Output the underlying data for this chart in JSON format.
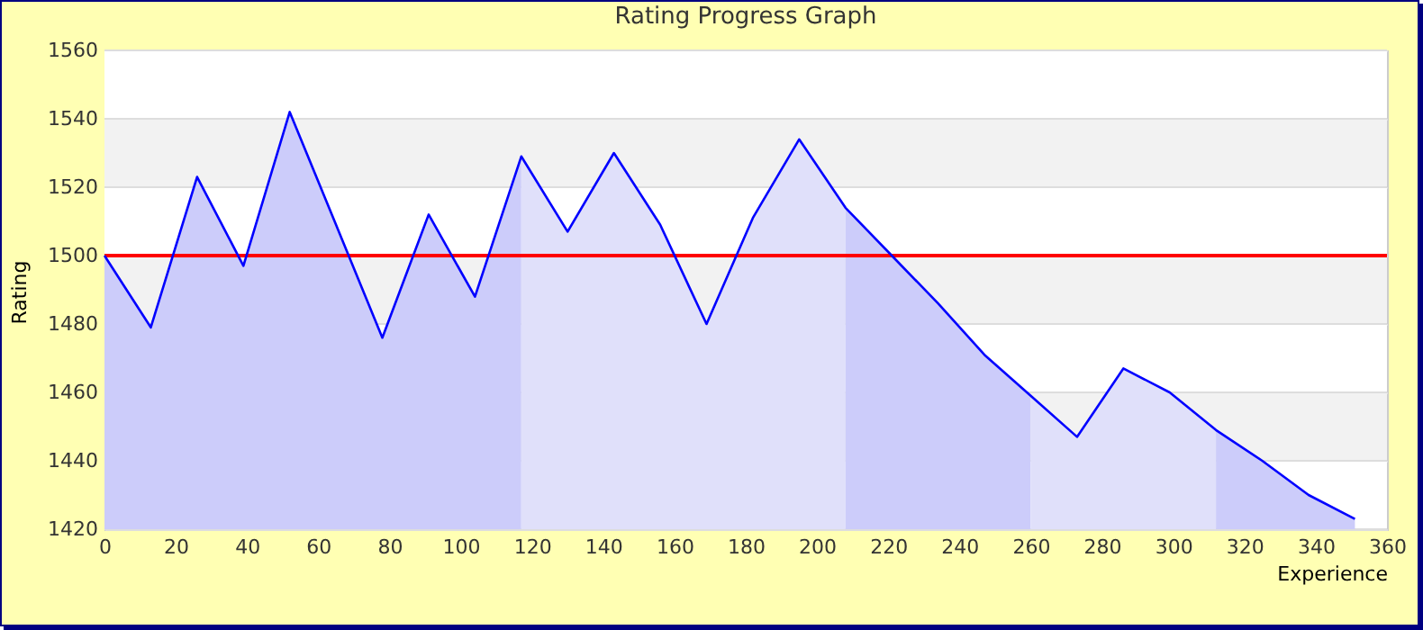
{
  "chart_data": {
    "type": "line",
    "title": "Rating Progress Graph",
    "xlabel": "Experience",
    "ylabel": "Rating",
    "xlim": [
      0,
      360
    ],
    "xticks": [
      0,
      20,
      40,
      60,
      80,
      100,
      120,
      140,
      160,
      180,
      200,
      220,
      240,
      260,
      280,
      300,
      320,
      340,
      360
    ],
    "ylim": [
      1420,
      1560
    ],
    "yticks": [
      1420,
      1440,
      1460,
      1480,
      1500,
      1520,
      1540,
      1560
    ],
    "grid": "y",
    "bands": [
      {
        "axis": "y",
        "from": 1440,
        "to": 1460,
        "color": "#f2f2f2"
      },
      {
        "axis": "y",
        "from": 1480,
        "to": 1500,
        "color": "#f2f2f2"
      },
      {
        "axis": "y",
        "from": 1520,
        "to": 1540,
        "color": "#f2f2f2"
      }
    ],
    "ref_lines": [
      {
        "axis": "y",
        "value": 1500,
        "color": "#ff0000"
      }
    ],
    "series": [
      {
        "type": "area",
        "color": "#ccccfa",
        "x": [
          0,
          13,
          26,
          39,
          52,
          65,
          78,
          91,
          104,
          117
        ],
        "values": [
          1500,
          1479,
          1523,
          1497,
          1542,
          1509,
          1476,
          1512,
          1488,
          1529
        ]
      },
      {
        "type": "area",
        "color": "#e0e0fa",
        "x": [
          117,
          130,
          143,
          156,
          169,
          182,
          195,
          208
        ],
        "values": [
          1529,
          1507,
          1530,
          1509,
          1480,
          1511,
          1534,
          1514
        ]
      },
      {
        "type": "area",
        "color": "#ccccfa",
        "x": [
          208,
          221,
          234,
          247,
          260
        ],
        "values": [
          1514,
          1500,
          1486,
          1471,
          1459
        ]
      },
      {
        "type": "area",
        "color": "#e0e0fa",
        "x": [
          260,
          273,
          286,
          299,
          312
        ],
        "values": [
          1459,
          1447,
          1467,
          1460,
          1449
        ]
      },
      {
        "type": "area",
        "color": "#ccccfa",
        "x": [
          312,
          325,
          338,
          351
        ],
        "values": [
          1449,
          1440,
          1430,
          1423
        ]
      },
      {
        "color": "#0000ff",
        "x": [
          0,
          13,
          26,
          39,
          52,
          65,
          78,
          91,
          104,
          117,
          130,
          143,
          156,
          169,
          182,
          195,
          208,
          221,
          234,
          247,
          260,
          273,
          286,
          299,
          312,
          325,
          338,
          351
        ],
        "values": [
          1500,
          1479,
          1523,
          1497,
          1542,
          1509,
          1476,
          1512,
          1488,
          1529,
          1507,
          1530,
          1509,
          1480,
          1511,
          1534,
          1514,
          1500,
          1486,
          1471,
          1459,
          1447,
          1467,
          1460,
          1449,
          1440,
          1430,
          1423
        ]
      }
    ]
  }
}
